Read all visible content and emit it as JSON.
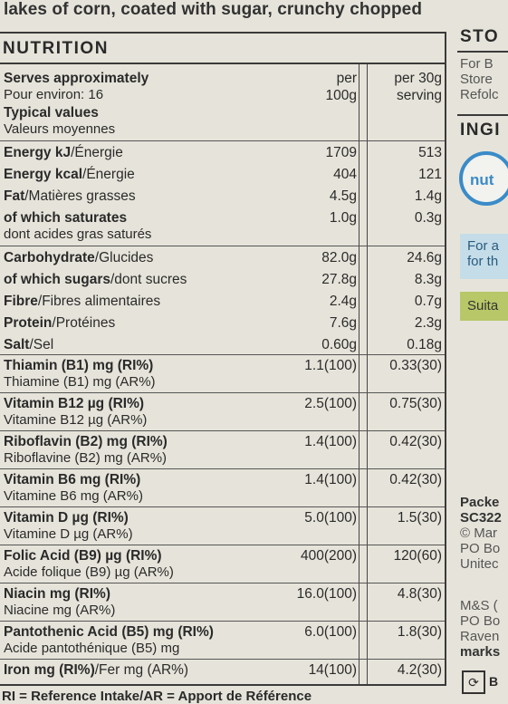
{
  "top_text": "lakes of corn, coated with sugar, crunchy chopped",
  "panel_title": "NUTRITION",
  "header": {
    "serves_en": "Serves approximately",
    "serves_fr": "Pour environ: 16",
    "typical_en": "Typical values",
    "typical_fr": "Valeurs moyennes",
    "col1_line1": "per",
    "col1_line2": "100g",
    "col2_line1": "per 30g",
    "col2_line2": "serving"
  },
  "rows": [
    {
      "en": "Energy kJ",
      "fr": "/Énergie",
      "v1": "1709",
      "v2": "513"
    },
    {
      "en": "Energy kcal",
      "fr": "/Énergie",
      "v1": "404",
      "v2": "121"
    },
    {
      "en": "Fat",
      "fr": "/Matières grasses",
      "v1": "4.5g",
      "v2": "1.4g"
    },
    {
      "en": "of which saturates",
      "fr": "",
      "sub": "dont acides gras saturés",
      "v1": "1.0g",
      "v2": "0.3g"
    },
    {
      "en": "Carbohydrate",
      "fr": "/Glucides",
      "v1": "82.0g",
      "v2": "24.6g"
    },
    {
      "en": "of which sugars",
      "fr": "/dont sucres",
      "v1": "27.8g",
      "v2": "8.3g"
    },
    {
      "en": "Fibre",
      "fr": "/Fibres alimentaires",
      "v1": "2.4g",
      "v2": "0.7g"
    },
    {
      "en": "Protein",
      "fr": "/Protéines",
      "v1": "7.6g",
      "v2": "2.3g"
    },
    {
      "en": "Salt",
      "fr": "/Sel",
      "v1": "0.60g",
      "v2": "0.18g"
    },
    {
      "en": "Thiamin (B1) mg (RI%)",
      "fr": "",
      "sub": "Thiamine (B1) mg (AR%)",
      "v1": "1.1(100)",
      "v2": "0.33(30)"
    },
    {
      "en": "Vitamin B12 µg (RI%)",
      "fr": "",
      "sub": "Vitamine B12 µg (AR%)",
      "v1": "2.5(100)",
      "v2": "0.75(30)"
    },
    {
      "en": "Riboflavin (B2) mg (RI%)",
      "fr": "",
      "sub": "Riboflavine (B2) mg (AR%)",
      "v1": "1.4(100)",
      "v2": "0.42(30)"
    },
    {
      "en": "Vitamin B6 mg (RI%)",
      "fr": "",
      "sub": "Vitamine B6 mg (AR%)",
      "v1": "1.4(100)",
      "v2": "0.42(30)"
    },
    {
      "en": "Vitamin D µg (RI%)",
      "fr": "",
      "sub": "Vitamine D µg (AR%)",
      "v1": "5.0(100)",
      "v2": "1.5(30)"
    },
    {
      "en": "Folic Acid (B9) µg (RI%)",
      "fr": "",
      "sub": "Acide folique (B9) µg (AR%)",
      "v1": "400(200)",
      "v2": "120(60)"
    },
    {
      "en": "Niacin mg (RI%)",
      "fr": "",
      "sub": "Niacine mg (AR%)",
      "v1": "16.0(100)",
      "v2": "4.8(30)"
    },
    {
      "en": "Pantothenic Acid (B5) mg (RI%)",
      "fr": "",
      "sub": "Acide pantothénique (B5) mg",
      "v1": "6.0(100)",
      "v2": "1.8(30)"
    },
    {
      "en": "Iron mg (RI%)",
      "fr": "/Fer mg (AR%)",
      "v1": "14(100)",
      "v2": "4.2(30)"
    }
  ],
  "footer": "RI = Reference Intake/AR = Apport de Référence",
  "right_column": {
    "storage_title": "STO",
    "storage_lines": [
      "For B",
      "Store",
      "Refolc"
    ],
    "ingredients_title": "INGI",
    "badge_text": "nut",
    "blue_lines": [
      "For a",
      "for th"
    ],
    "green_text": "Suita",
    "packed_lines": [
      "Packe",
      "SC322",
      "© Mar",
      "PO Bo",
      "Unitec"
    ],
    "ms_lines": [
      "M&S (",
      "PO Bo",
      "Raven",
      "marks"
    ],
    "bottom_icon_text": "B"
  }
}
